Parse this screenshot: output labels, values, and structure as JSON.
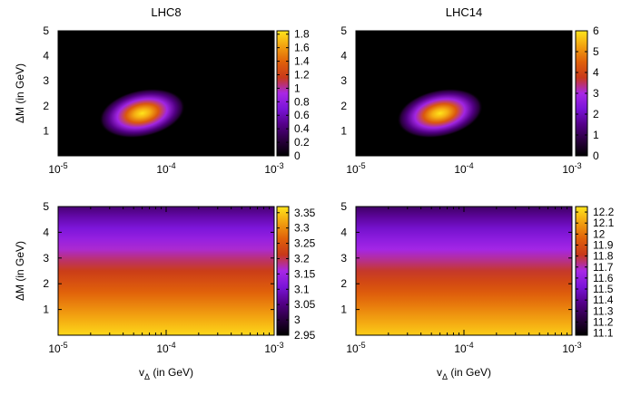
{
  "chart_data": [
    {
      "type": "heatmap",
      "title": "LHC8",
      "xlabel": "",
      "ylabel": "ΔM (in GeV)",
      "x_scale": "log",
      "xlim": [
        1e-05,
        0.001
      ],
      "ylim": [
        0,
        5
      ],
      "xticks": [
        {
          "base": "10",
          "exp": "-5"
        },
        {
          "base": "10",
          "exp": "-4"
        },
        {
          "base": "10",
          "exp": "-3"
        }
      ],
      "yticks": [
        "1",
        "2",
        "3",
        "4",
        "5"
      ],
      "colorbar": {
        "range": [
          0,
          1.85
        ],
        "ticks": [
          "0",
          "0.2",
          "0.4",
          "0.6",
          "0.8",
          "1",
          "1.2",
          "1.4",
          "1.6",
          "1.8"
        ]
      },
      "pattern": "peak",
      "peak": {
        "x": 6e-05,
        "y": 1.7,
        "value": 1.85
      }
    },
    {
      "type": "heatmap",
      "title": "LHC14",
      "xlabel": "",
      "ylabel": "",
      "x_scale": "log",
      "xlim": [
        1e-05,
        0.001
      ],
      "ylim": [
        0,
        5
      ],
      "xticks": [
        {
          "base": "10",
          "exp": "-5"
        },
        {
          "base": "10",
          "exp": "-4"
        },
        {
          "base": "10",
          "exp": "-3"
        }
      ],
      "yticks": [
        "1",
        "2",
        "3",
        "4",
        "5"
      ],
      "colorbar": {
        "range": [
          0,
          6
        ],
        "ticks": [
          "0",
          "1",
          "2",
          "3",
          "4",
          "5",
          "6"
        ]
      },
      "pattern": "peak",
      "peak": {
        "x": 6e-05,
        "y": 1.7,
        "value": 6
      }
    },
    {
      "type": "heatmap",
      "title": "",
      "xlabel": {
        "base": "v",
        "sub": "Δ",
        "rest": " (in GeV)"
      },
      "ylabel": "ΔM (in GeV)",
      "x_scale": "log",
      "xlim": [
        1e-05,
        0.001
      ],
      "ylim": [
        0,
        5
      ],
      "xticks": [
        {
          "base": "10",
          "exp": "-5"
        },
        {
          "base": "10",
          "exp": "-4"
        },
        {
          "base": "10",
          "exp": "-3"
        }
      ],
      "yticks": [
        "1",
        "2",
        "3",
        "4",
        "5"
      ],
      "colorbar": {
        "range": [
          2.95,
          3.37
        ],
        "ticks": [
          "2.95",
          "3",
          "3.05",
          "3.1",
          "3.15",
          "3.2",
          "3.25",
          "3.3",
          "3.35"
        ]
      },
      "pattern": "vertical-gradient",
      "gradient": {
        "top_value": 3.04,
        "bottom_value": 3.36
      }
    },
    {
      "type": "heatmap",
      "title": "",
      "xlabel": {
        "base": "v",
        "sub": "Δ",
        "rest": " (in GeV)"
      },
      "ylabel": "",
      "x_scale": "log",
      "xlim": [
        1e-05,
        0.001
      ],
      "ylim": [
        0,
        5
      ],
      "xticks": [
        {
          "base": "10",
          "exp": "-5"
        },
        {
          "base": "10",
          "exp": "-4"
        },
        {
          "base": "10",
          "exp": "-3"
        }
      ],
      "yticks": [
        "1",
        "2",
        "3",
        "4",
        "5"
      ],
      "colorbar": {
        "range": [
          11.08,
          12.25
        ],
        "ticks": [
          "11.1",
          "11.2",
          "11.3",
          "11.4",
          "11.5",
          "11.6",
          "11.7",
          "11.8",
          "11.9",
          "12",
          "12.1",
          "12.2"
        ]
      },
      "pattern": "vertical-gradient",
      "gradient": {
        "top_value": 11.3,
        "bottom_value": 12.2
      }
    }
  ],
  "colormap": [
    "#000000",
    "#2a003f",
    "#540088",
    "#7a14d8",
    "#a828e6",
    "#c8391a",
    "#e0600a",
    "#f2a010",
    "#ffe51c"
  ]
}
